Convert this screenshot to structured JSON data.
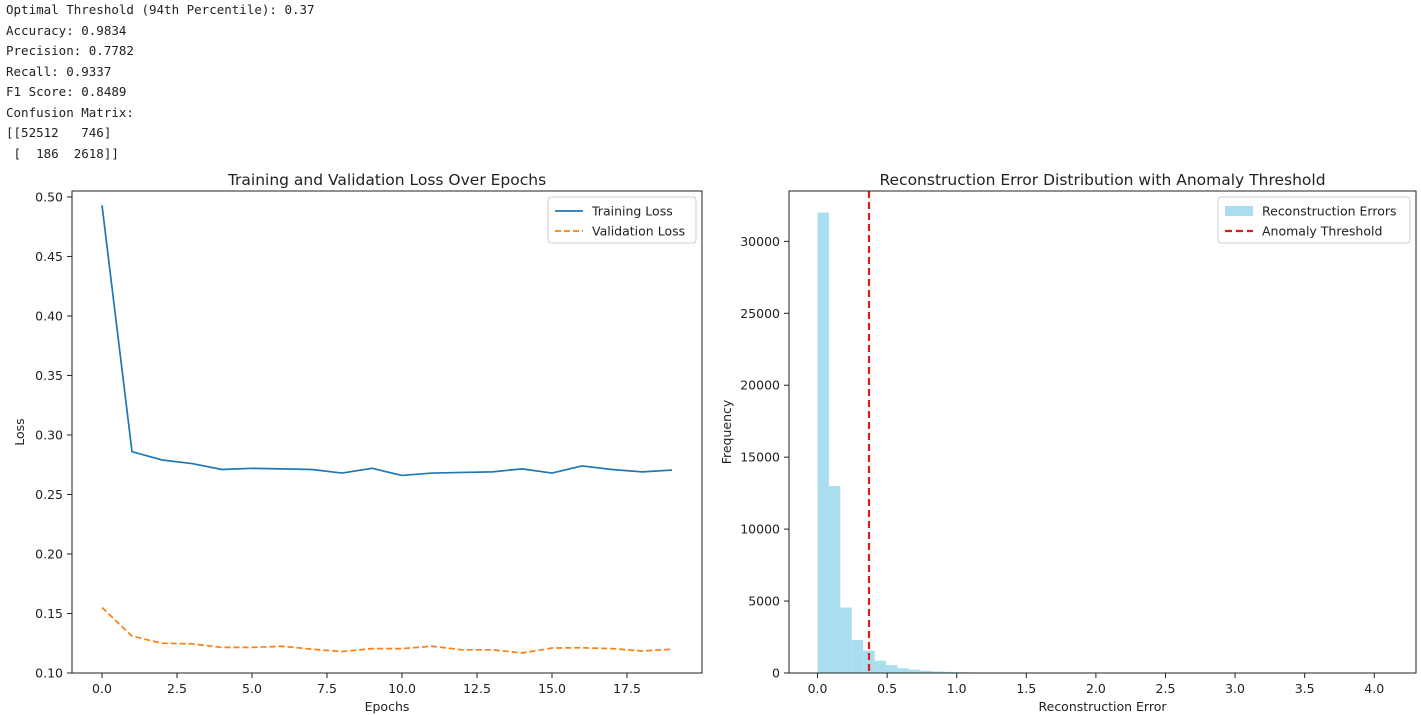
{
  "console": {
    "lines": [
      "Optimal Threshold (94th Percentile): 0.37",
      "Accuracy: 0.9834",
      "Precision: 0.7782",
      "Recall: 0.9337",
      "F1 Score: 0.8489",
      "Confusion Matrix:",
      "[[52512   746]",
      " [  186  2618]]"
    ]
  },
  "chart_data": [
    {
      "type": "line",
      "title": "Training and Validation Loss Over Epochs",
      "xlabel": "Epochs",
      "ylabel": "Loss",
      "xlim": [
        -1.0,
        20.0
      ],
      "ylim": [
        0.1,
        0.505
      ],
      "xticks": [
        0.0,
        2.5,
        5.0,
        7.5,
        10.0,
        12.5,
        15.0,
        17.5
      ],
      "xtick_labels": [
        "0.0",
        "2.5",
        "5.0",
        "7.5",
        "10.0",
        "12.5",
        "15.0",
        "17.5"
      ],
      "yticks": [
        0.1,
        0.15,
        0.2,
        0.25,
        0.3,
        0.35,
        0.4,
        0.45,
        0.5
      ],
      "ytick_labels": [
        "0.10",
        "0.15",
        "0.20",
        "0.25",
        "0.30",
        "0.35",
        "0.40",
        "0.45",
        "0.50"
      ],
      "legend_position": "top-right",
      "grid": false,
      "x": [
        0,
        1,
        2,
        3,
        4,
        5,
        6,
        7,
        8,
        9,
        10,
        11,
        12,
        13,
        14,
        15,
        16,
        17,
        18,
        19
      ],
      "series": [
        {
          "name": "Training Loss",
          "color": "#1f77b4",
          "dash": "solid",
          "values": [
            0.493,
            0.286,
            0.279,
            0.276,
            0.271,
            0.272,
            0.2715,
            0.271,
            0.268,
            0.272,
            0.266,
            0.268,
            0.2685,
            0.269,
            0.2715,
            0.268,
            0.274,
            0.271,
            0.269,
            0.2705
          ]
        },
        {
          "name": "Validation Loss",
          "color": "#ff7f0e",
          "dash": "dashed",
          "values": [
            0.155,
            0.131,
            0.125,
            0.1245,
            0.1215,
            0.1215,
            0.1225,
            0.12,
            0.118,
            0.1205,
            0.1205,
            0.1225,
            0.1195,
            0.1195,
            0.1168,
            0.121,
            0.1212,
            0.1205,
            0.1185,
            0.12
          ]
        }
      ]
    },
    {
      "type": "bar",
      "subtype": "histogram",
      "title": "Reconstruction Error Distribution with Anomaly Threshold",
      "xlabel": "Reconstruction Error",
      "ylabel": "Frequency",
      "xlim": [
        -0.205,
        4.3
      ],
      "ylim": [
        0,
        33500
      ],
      "xticks": [
        0.0,
        0.5,
        1.0,
        1.5,
        2.0,
        2.5,
        3.0,
        3.5,
        4.0
      ],
      "xtick_labels": [
        "0.0",
        "0.5",
        "1.0",
        "1.5",
        "2.0",
        "2.5",
        "3.0",
        "3.5",
        "4.0"
      ],
      "yticks": [
        0,
        5000,
        10000,
        15000,
        20000,
        25000,
        30000
      ],
      "ytick_labels": [
        "0",
        "5000",
        "10000",
        "15000",
        "20000",
        "25000",
        "30000"
      ],
      "legend_position": "top-right",
      "grid": false,
      "bin_start": 0.0,
      "bin_width": 0.082,
      "bar_color": "#87ceeb",
      "bar_opacity": 0.7,
      "series": [
        {
          "name": "Reconstruction Errors",
          "values": [
            32000,
            13000,
            4550,
            2300,
            1550,
            850,
            550,
            330,
            230,
            160,
            110,
            80,
            60,
            45,
            35,
            30,
            25,
            20,
            15,
            12,
            10,
            8,
            6,
            5,
            4,
            4,
            3,
            3,
            3,
            2,
            2,
            2,
            2,
            2,
            1,
            1,
            1,
            1,
            1,
            1,
            1,
            1,
            1,
            1,
            1,
            1,
            1,
            1,
            1,
            1
          ]
        }
      ],
      "threshold": {
        "name": "Anomaly Threshold",
        "value": 0.37,
        "color": "#e31a1c"
      }
    }
  ]
}
